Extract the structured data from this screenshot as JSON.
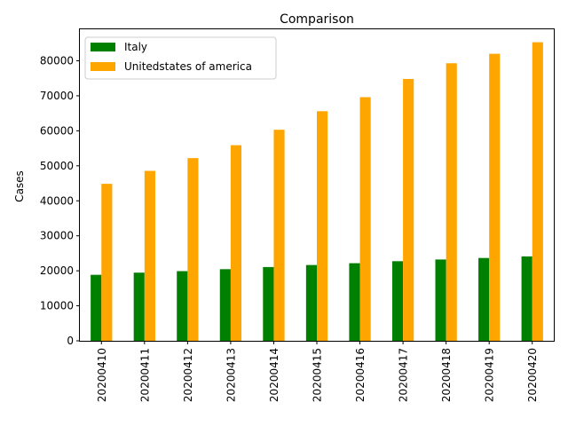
{
  "chart_data": {
    "type": "bar",
    "title": "Comparison",
    "xlabel": "",
    "ylabel": "Cases",
    "categories": [
      "20200410",
      "20200411",
      "20200412",
      "20200413",
      "20200414",
      "20200415",
      "20200416",
      "20200417",
      "20200418",
      "20200419",
      "20200420"
    ],
    "series": [
      {
        "name": "Italy",
        "color": "#008000",
        "values": [
          18850,
          19470,
          19900,
          20460,
          21070,
          21650,
          22170,
          22740,
          23230,
          23660,
          24110
        ]
      },
      {
        "name": "Unitedstates of america",
        "color": "#ffa500",
        "values": [
          44850,
          48550,
          52200,
          55880,
          60300,
          65600,
          69600,
          74800,
          79300,
          82000,
          85300
        ]
      }
    ],
    "ylim": [
      0,
      89000
    ],
    "yticks": [
      0,
      10000,
      20000,
      30000,
      40000,
      50000,
      60000,
      70000,
      80000
    ],
    "legend_position": "top-left",
    "grid": false
  }
}
